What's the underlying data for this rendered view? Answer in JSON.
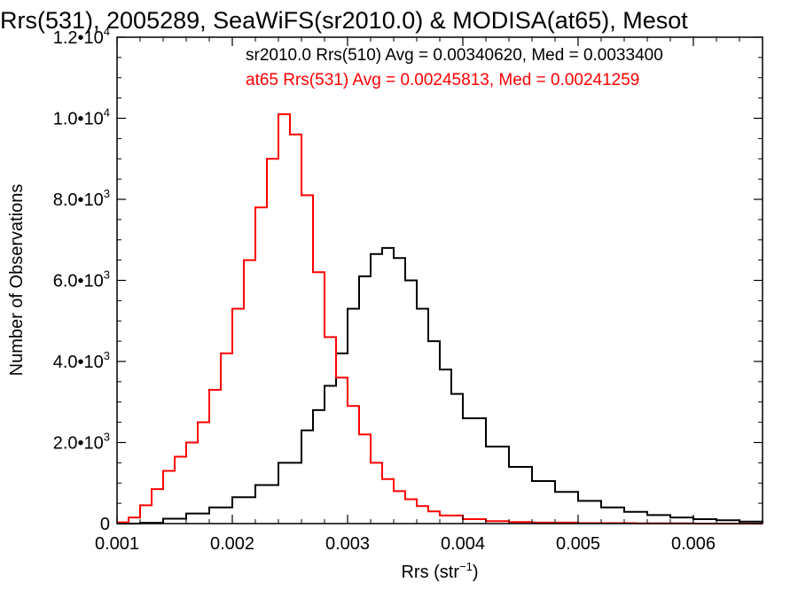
{
  "chart_data": {
    "type": "line",
    "title": "Rrs(531), 2005289, SeaWiFS(sr2010.0) & MODISA(at65), Mesot",
    "xlabel": "Rrs (str",
    "xlabel_sup": "−1",
    "xlabel_suffix": ")",
    "ylabel": "Number of Observations",
    "xlim": [
      0.001,
      0.0066
    ],
    "ylim": [
      0,
      12000
    ],
    "x_ticks": [
      {
        "value": 0.001,
        "label": "0.001"
      },
      {
        "value": 0.002,
        "label": "0.002"
      },
      {
        "value": 0.003,
        "label": "0.003"
      },
      {
        "value": 0.004,
        "label": "0.004"
      },
      {
        "value": 0.005,
        "label": "0.005"
      },
      {
        "value": 0.006,
        "label": "0.006"
      }
    ],
    "y_ticks": [
      {
        "value": 0,
        "mant": "0",
        "exp": ""
      },
      {
        "value": 2000,
        "mant": "2.0•10",
        "exp": "3"
      },
      {
        "value": 4000,
        "mant": "4.0•10",
        "exp": "3"
      },
      {
        "value": 6000,
        "mant": "6.0•10",
        "exp": "3"
      },
      {
        "value": 8000,
        "mant": "8.0•10",
        "exp": "3"
      },
      {
        "value": 10000,
        "mant": "1.0•10",
        "exp": "4"
      },
      {
        "value": 12000,
        "mant": "1.2•10",
        "exp": "4"
      }
    ],
    "grid": false,
    "legend_position": "top-right",
    "series": [
      {
        "name": "sr2010.0 Rrs(510) Avg = 0.00340620, Med = 0.0033400",
        "color": "#000000",
        "x": [
          0.001,
          0.0012,
          0.0014,
          0.0016,
          0.0018,
          0.002,
          0.0022,
          0.0024,
          0.0026,
          0.0027,
          0.0028,
          0.0029,
          0.003,
          0.0031,
          0.0032,
          0.0033,
          0.0034,
          0.0035,
          0.0036,
          0.0037,
          0.0038,
          0.0039,
          0.004,
          0.0042,
          0.0044,
          0.0046,
          0.0048,
          0.005,
          0.0052,
          0.0054,
          0.0056,
          0.0058,
          0.006,
          0.0062,
          0.0064,
          0.0066
        ],
        "y": [
          0,
          20,
          120,
          250,
          400,
          650,
          950,
          1500,
          2300,
          2800,
          3400,
          4200,
          5300,
          6100,
          6650,
          6800,
          6550,
          6000,
          5300,
          4500,
          3800,
          3200,
          2600,
          1900,
          1400,
          1050,
          780,
          560,
          400,
          290,
          210,
          150,
          110,
          80,
          50,
          20
        ]
      },
      {
        "name": "at65 Rrs(531) Avg = 0.00245813, Med = 0.00241259",
        "color": "#ff0000",
        "x": [
          0.001,
          0.0011,
          0.0012,
          0.0013,
          0.0014,
          0.0015,
          0.0016,
          0.0017,
          0.0018,
          0.0019,
          0.002,
          0.0021,
          0.0022,
          0.0023,
          0.0024,
          0.0025,
          0.0026,
          0.0027,
          0.0028,
          0.0029,
          0.003,
          0.0031,
          0.0032,
          0.0033,
          0.0034,
          0.0035,
          0.0036,
          0.0037,
          0.0038,
          0.004,
          0.0042,
          0.0044,
          0.0046,
          0.005,
          0.0055,
          0.006,
          0.0066
        ],
        "y": [
          30,
          150,
          450,
          850,
          1300,
          1650,
          2000,
          2500,
          3300,
          4200,
          5300,
          6500,
          7800,
          9000,
          10100,
          9600,
          8100,
          6200,
          4600,
          3600,
          2900,
          2200,
          1500,
          1100,
          800,
          600,
          430,
          300,
          200,
          110,
          60,
          40,
          25,
          10,
          5,
          0,
          0
        ]
      }
    ]
  }
}
